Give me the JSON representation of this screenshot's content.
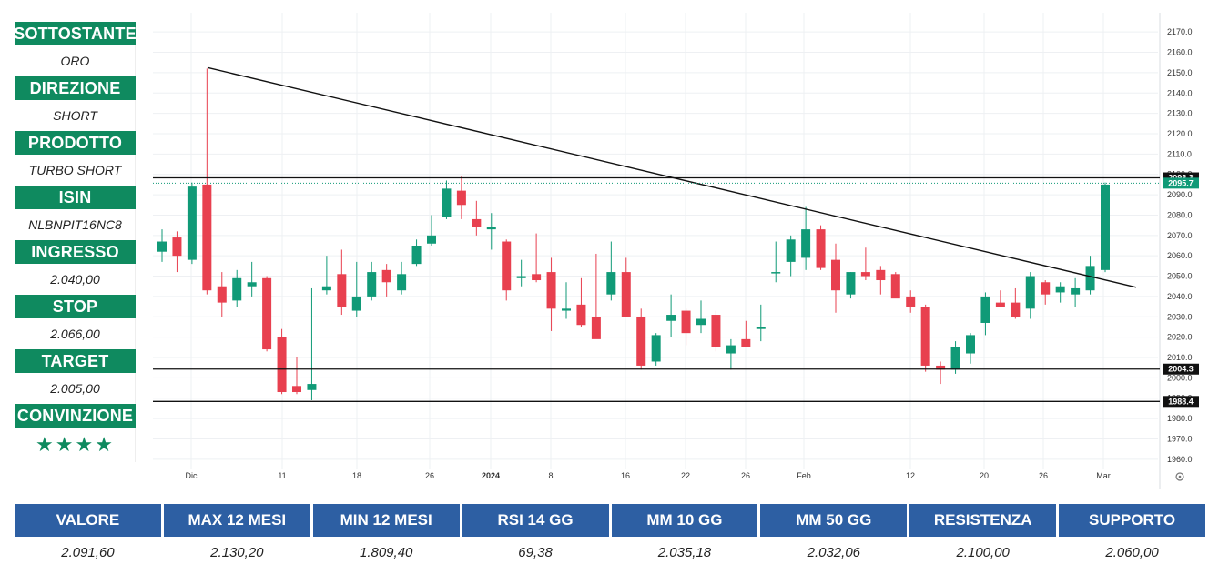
{
  "side_panel": [
    {
      "label": "SOTTOSTANTE",
      "value": "ORO"
    },
    {
      "label": "DIREZIONE",
      "value": "SHORT"
    },
    {
      "label": "PRODOTTO",
      "value": "TURBO SHORT"
    },
    {
      "label": "ISIN",
      "value": "NLBNPIT16NC8"
    },
    {
      "label": "INGRESSO",
      "value": "2.040,00"
    },
    {
      "label": "STOP",
      "value": "2.066,00"
    },
    {
      "label": "TARGET",
      "value": "2.005,00"
    },
    {
      "label": "CONVINZIONE",
      "value": "★★★★"
    }
  ],
  "stats": [
    {
      "label": "VALORE",
      "value": "2.091,60"
    },
    {
      "label": "MAX 12 MESI",
      "value": "2.130,20"
    },
    {
      "label": "MIN 12 MESI",
      "value": "1.809,40"
    },
    {
      "label": "RSI 14 GG",
      "value": "69,38"
    },
    {
      "label": "MM 10 GG",
      "value": "2.035,18"
    },
    {
      "label": "MM 50 GG",
      "value": "2.032,06"
    },
    {
      "label": "RESISTENZA",
      "value": "2.100,00"
    },
    {
      "label": "SUPPORTO",
      "value": "2.060,00"
    }
  ],
  "colors": {
    "up": "#109a77",
    "down": "#e8404f",
    "panel_green": "#0f8a5f",
    "table_blue": "#2d5fa3"
  },
  "chart_data": {
    "type": "candlestick",
    "ylim": [
      1955,
      2175
    ],
    "y_ticks": [
      "1960.0",
      "1970.0",
      "1980.0",
      "1990.0",
      "2000.0",
      "2010.0",
      "2020.0",
      "2030.0",
      "2040.0",
      "2050.0",
      "2060.0",
      "2070.0",
      "2080.0",
      "2090.0",
      "2100.0",
      "2110.0",
      "2120.0",
      "2130.0",
      "2140.0",
      "2150.0",
      "2160.0",
      "2170.0"
    ],
    "x_ticks": [
      {
        "label": "Dic",
        "bold": false
      },
      {
        "label": "11",
        "bold": false
      },
      {
        "label": "18",
        "bold": false
      },
      {
        "label": "26",
        "bold": false
      },
      {
        "label": "2024",
        "bold": true
      },
      {
        "label": "8",
        "bold": false
      },
      {
        "label": "16",
        "bold": false
      },
      {
        "label": "22",
        "bold": false
      },
      {
        "label": "26",
        "bold": false
      },
      {
        "label": "Feb",
        "bold": false
      },
      {
        "label": "12",
        "bold": false
      },
      {
        "label": "20",
        "bold": false
      },
      {
        "label": "26",
        "bold": false
      },
      {
        "label": "Mar",
        "bold": false
      }
    ],
    "candles": [
      {
        "o": 2062,
        "h": 2073,
        "l": 2057,
        "c": 2067
      },
      {
        "o": 2069,
        "h": 2072,
        "l": 2052,
        "c": 2060
      },
      {
        "o": 2058,
        "h": 2096,
        "l": 2056,
        "c": 2094
      },
      {
        "o": 2095,
        "h": 2152,
        "l": 2041,
        "c": 2043
      },
      {
        "o": 2045,
        "h": 2052,
        "l": 2030,
        "c": 2037
      },
      {
        "o": 2038,
        "h": 2053,
        "l": 2035,
        "c": 2049
      },
      {
        "o": 2045,
        "h": 2057,
        "l": 2040,
        "c": 2047
      },
      {
        "o": 2049,
        "h": 2050,
        "l": 2013,
        "c": 2014
      },
      {
        "o": 2020,
        "h": 2024,
        "l": 1992,
        "c": 1993
      },
      {
        "o": 1996,
        "h": 2010,
        "l": 1992,
        "c": 1993
      },
      {
        "o": 1994,
        "h": 2044,
        "l": 1989,
        "c": 1997
      },
      {
        "o": 2043,
        "h": 2060,
        "l": 2041,
        "c": 2045
      },
      {
        "o": 2051,
        "h": 2063,
        "l": 2031,
        "c": 2035
      },
      {
        "o": 2033,
        "h": 2057,
        "l": 2030,
        "c": 2040
      },
      {
        "o": 2040,
        "h": 2057,
        "l": 2038,
        "c": 2052
      },
      {
        "o": 2053,
        "h": 2056,
        "l": 2040,
        "c": 2047
      },
      {
        "o": 2043,
        "h": 2057,
        "l": 2041,
        "c": 2051
      },
      {
        "o": 2056,
        "h": 2068,
        "l": 2055,
        "c": 2065
      },
      {
        "o": 2066,
        "h": 2080,
        "l": 2065,
        "c": 2070
      },
      {
        "o": 2079,
        "h": 2097,
        "l": 2078,
        "c": 2093
      },
      {
        "o": 2092,
        "h": 2099,
        "l": 2078,
        "c": 2085
      },
      {
        "o": 2078,
        "h": 2087,
        "l": 2070,
        "c": 2074
      },
      {
        "o": 2073,
        "h": 2081,
        "l": 2063,
        "c": 2074
      },
      {
        "o": 2067,
        "h": 2068,
        "l": 2038,
        "c": 2043
      },
      {
        "o": 2049,
        "h": 2058,
        "l": 2045,
        "c": 2050
      },
      {
        "o": 2051,
        "h": 2071,
        "l": 2047,
        "c": 2048
      },
      {
        "o": 2052,
        "h": 2059,
        "l": 2023,
        "c": 2034
      },
      {
        "o": 2033,
        "h": 2047,
        "l": 2029,
        "c": 2034
      },
      {
        "o": 2036,
        "h": 2049,
        "l": 2025,
        "c": 2026
      },
      {
        "o": 2030,
        "h": 2061,
        "l": 2021,
        "c": 2019
      },
      {
        "o": 2041,
        "h": 2067,
        "l": 2038,
        "c": 2052
      },
      {
        "o": 2052,
        "h": 2059,
        "l": 2031,
        "c": 2030
      },
      {
        "o": 2030,
        "h": 2034,
        "l": 2004,
        "c": 2006
      },
      {
        "o": 2008,
        "h": 2022,
        "l": 2006,
        "c": 2021
      },
      {
        "o": 2028,
        "h": 2041,
        "l": 2020,
        "c": 2031
      },
      {
        "o": 2033,
        "h": 2034,
        "l": 2016,
        "c": 2022
      },
      {
        "o": 2026,
        "h": 2038,
        "l": 2022,
        "c": 2029
      },
      {
        "o": 2031,
        "h": 2033,
        "l": 2013,
        "c": 2015
      },
      {
        "o": 2012,
        "h": 2019,
        "l": 2004,
        "c": 2016
      },
      {
        "o": 2019,
        "h": 2028,
        "l": 2016,
        "c": 2015
      },
      {
        "o": 2024,
        "h": 2036,
        "l": 2018,
        "c": 2025
      },
      {
        "o": 2052,
        "h": 2067,
        "l": 2047,
        "c": 2052
      },
      {
        "o": 2057,
        "h": 2070,
        "l": 2050,
        "c": 2068
      },
      {
        "o": 2059,
        "h": 2084,
        "l": 2053,
        "c": 2073
      },
      {
        "o": 2073,
        "h": 2075,
        "l": 2053,
        "c": 2054
      },
      {
        "o": 2058,
        "h": 2066,
        "l": 2032,
        "c": 2043
      },
      {
        "o": 2041,
        "h": 2052,
        "l": 2039,
        "c": 2052
      },
      {
        "o": 2052,
        "h": 2064,
        "l": 2048,
        "c": 2050
      },
      {
        "o": 2053,
        "h": 2055,
        "l": 2041,
        "c": 2048
      },
      {
        "o": 2051,
        "h": 2052,
        "l": 2040,
        "c": 2039
      },
      {
        "o": 2040,
        "h": 2043,
        "l": 2032,
        "c": 2035
      },
      {
        "o": 2035,
        "h": 2036,
        "l": 2003,
        "c": 2006
      },
      {
        "o": 2006,
        "h": 2008,
        "l": 1997,
        "c": 2004
      },
      {
        "o": 2004,
        "h": 2018,
        "l": 2002,
        "c": 2015
      },
      {
        "o": 2012,
        "h": 2022,
        "l": 2007,
        "c": 2021
      },
      {
        "o": 2027,
        "h": 2042,
        "l": 2021,
        "c": 2040
      },
      {
        "o": 2037,
        "h": 2043,
        "l": 2035,
        "c": 2035
      },
      {
        "o": 2037,
        "h": 2044,
        "l": 2029,
        "c": 2030
      },
      {
        "o": 2034,
        "h": 2052,
        "l": 2029,
        "c": 2050
      },
      {
        "o": 2047,
        "h": 2048,
        "l": 2036,
        "c": 2041
      },
      {
        "o": 2042,
        "h": 2047,
        "l": 2037,
        "c": 2045
      },
      {
        "o": 2041,
        "h": 2049,
        "l": 2035,
        "c": 2044
      },
      {
        "o": 2043,
        "h": 2060,
        "l": 2041,
        "c": 2055
      },
      {
        "o": 2053,
        "h": 2096,
        "l": 2052,
        "c": 2095
      }
    ],
    "levels": [
      {
        "value": 2098.3,
        "label": "2098.3",
        "color": "#111111"
      },
      {
        "value": 2004.3,
        "label": "2004.3",
        "color": "#111111"
      },
      {
        "value": 1988.4,
        "label": "1988.4",
        "color": "#111111"
      }
    ],
    "current_price": {
      "value": 2095.7,
      "label": "2095.7",
      "color": "#109a77"
    },
    "trendline": {
      "from": 2152.5,
      "to": 2044.5
    }
  }
}
